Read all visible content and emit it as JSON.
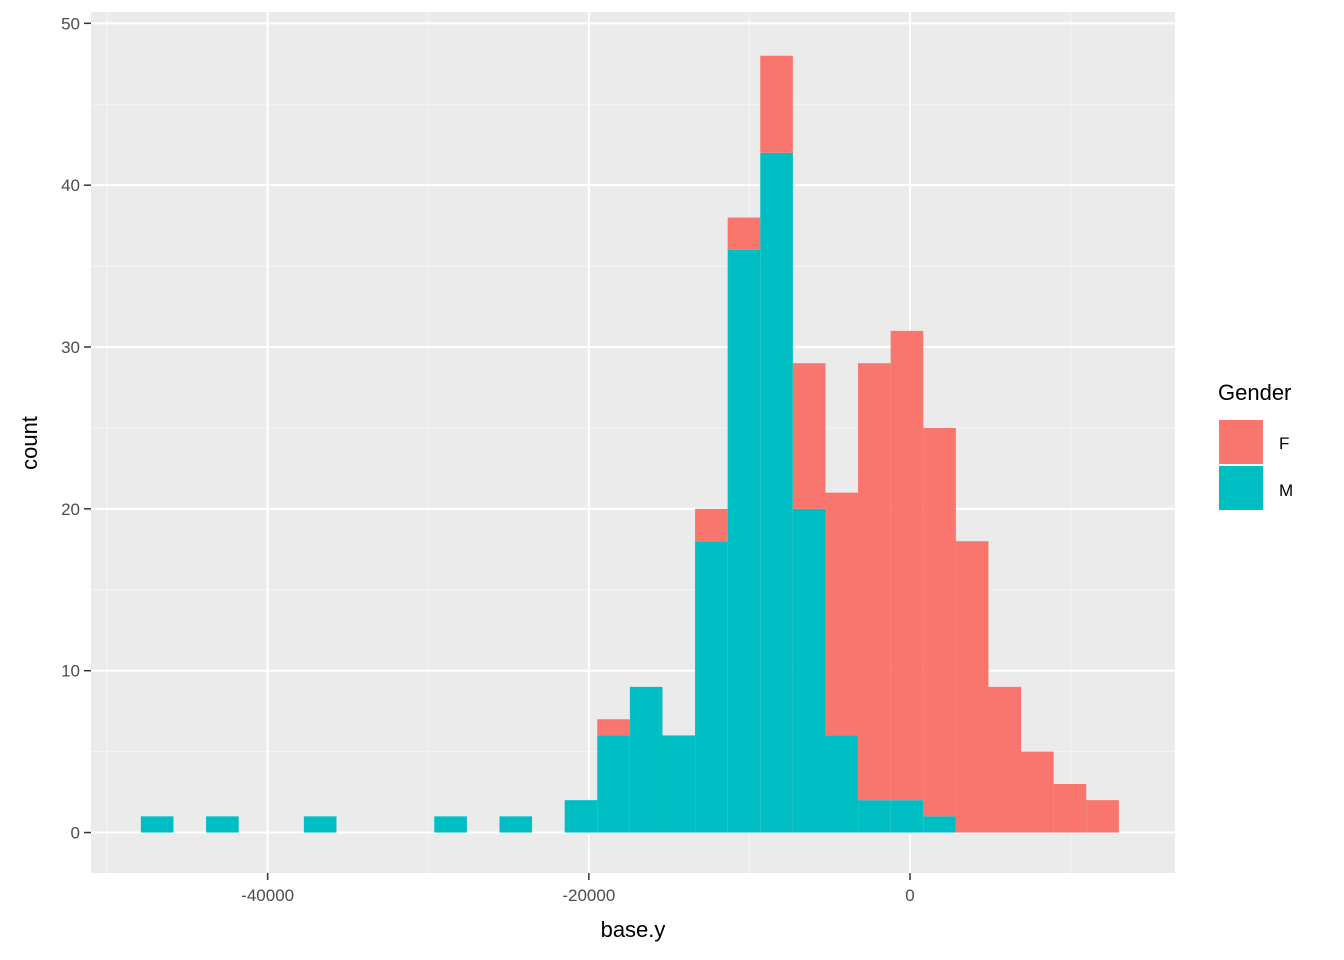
{
  "chart_data": {
    "type": "bar",
    "subtype": "stacked-histogram",
    "xlabel": "base.y",
    "ylabel": "count",
    "xlim": [
      -51000,
      16500
    ],
    "ylim": [
      -2.5,
      50.7
    ],
    "x_ticks": [
      -40000,
      -20000,
      0
    ],
    "x_tick_labels": [
      "-40000",
      "-20000",
      "0"
    ],
    "y_ticks": [
      0,
      10,
      20,
      30,
      40,
      50
    ],
    "y_tick_labels": [
      "0",
      "10",
      "20",
      "30",
      "40",
      "50"
    ],
    "grid": true,
    "legend": {
      "title": "Gender",
      "position": "right"
    },
    "bin_width": 2030,
    "bin_centers": [
      -46880,
      -42820,
      -36730,
      -28610,
      -24550,
      -20490,
      -18460,
      -16430,
      -14400,
      -12370,
      -10340,
      -8310,
      -6280,
      -4250,
      -2220,
      -190,
      1840,
      3870,
      5900,
      7930,
      9960,
      11990
    ],
    "series": [
      {
        "name": "F",
        "color": "#F8766D",
        "values": [
          0,
          0,
          0,
          0,
          0,
          0,
          1,
          0,
          0,
          2,
          2,
          6,
          9,
          15,
          27,
          29,
          24,
          18,
          9,
          5,
          3,
          2
        ]
      },
      {
        "name": "M",
        "color": "#00BFC4",
        "values": [
          1,
          1,
          1,
          1,
          1,
          2,
          6,
          9,
          6,
          18,
          36,
          42,
          20,
          6,
          2,
          2,
          1,
          0,
          0,
          0,
          0,
          0
        ]
      }
    ]
  }
}
